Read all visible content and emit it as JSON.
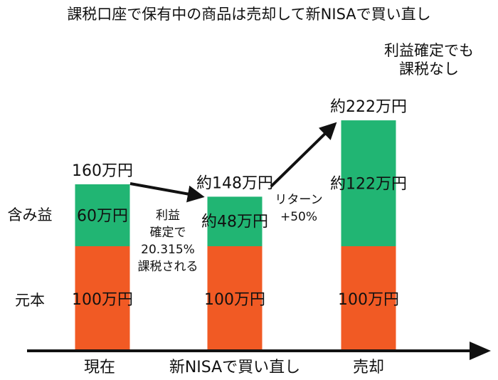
{
  "chart_data": {
    "type": "bar",
    "stacked": true,
    "title": "課税口座で保有中の商品は売却して新NISAで買い直し",
    "categories": [
      "現在",
      "新NISAで買い直し",
      "売却"
    ],
    "series": [
      {
        "name": "元本",
        "values": [
          100,
          100,
          100
        ],
        "labels": [
          "100万円",
          "100万円",
          "100万円"
        ],
        "color": "#f15a24"
      },
      {
        "name": "含み益",
        "values": [
          60,
          48,
          122
        ],
        "labels": [
          "60万円",
          "約48万円",
          "約122万円"
        ],
        "color": "#21b573"
      }
    ],
    "totals": [
      "160万円",
      "約148万円",
      "約222万円"
    ],
    "ylim": [
      0,
      230
    ],
    "annotations": {
      "tax": [
        "利益",
        "確定で",
        "20.315%",
        "課税される"
      ],
      "return": [
        "リターン",
        "+50%"
      ],
      "no_tax": [
        "利益確定でも",
        "課税なし"
      ]
    },
    "grid": false,
    "axis_color": "#111111",
    "arrow_color": "#111111"
  }
}
